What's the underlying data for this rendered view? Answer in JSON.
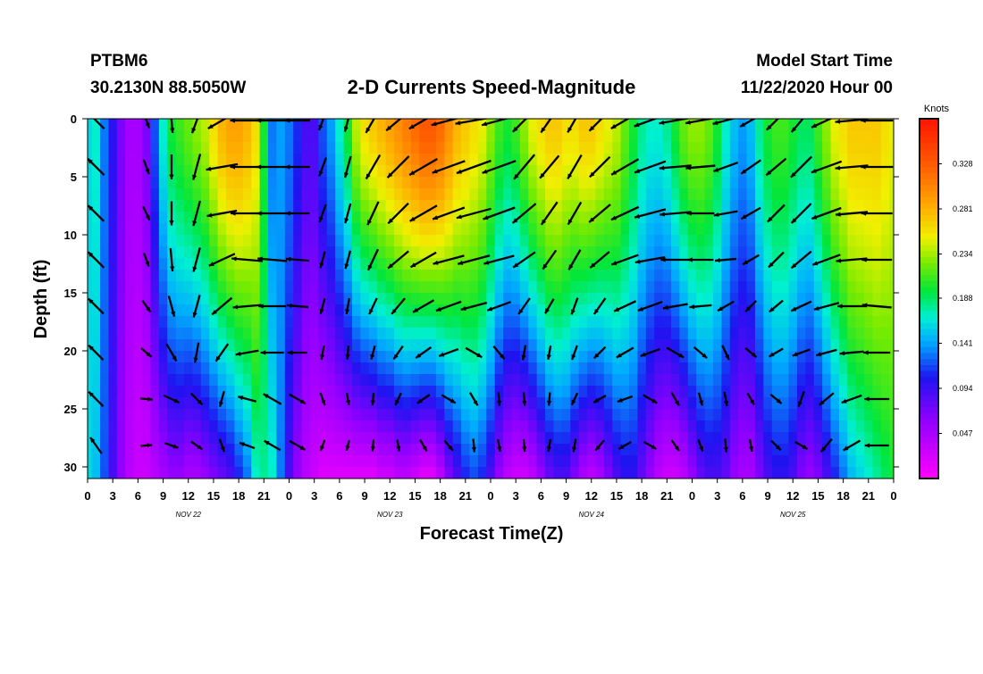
{
  "header": {
    "station": "PTBM6",
    "coords": "30.2130N 88.5050W",
    "title": "2-D Currents Speed-Magnitude",
    "model_start_label": "Model Start Time",
    "model_start_value": "11/22/2020 Hour 00"
  },
  "chart_data": {
    "type": "heatmap",
    "title": "2-D Currents Speed-Magnitude",
    "xlabel": "Forecast Time(Z)",
    "ylabel": "Depth (ft)",
    "x_unit": "hours since 11/22/2020 00Z",
    "xlim": [
      0,
      96
    ],
    "ylim": [
      0,
      31
    ],
    "y_inverted": true,
    "x_tick_labels": [
      "0",
      "3",
      "6",
      "9",
      "12",
      "15",
      "18",
      "21",
      "0",
      "3",
      "6",
      "9",
      "12",
      "15",
      "18",
      "21",
      "0",
      "3",
      "6",
      "9",
      "12",
      "15",
      "18",
      "21",
      "0",
      "3",
      "6",
      "9",
      "12",
      "15",
      "18",
      "21",
      "0"
    ],
    "y_ticks": [
      0,
      5,
      10,
      15,
      20,
      25,
      30
    ],
    "day_labels": [
      {
        "hour": 12,
        "label": "NOV 22"
      },
      {
        "hour": 36,
        "label": "NOV 23"
      },
      {
        "hour": 60,
        "label": "NOV 24"
      },
      {
        "hour": 84,
        "label": "NOV 25"
      }
    ],
    "colorbar": {
      "label": "Knots",
      "min": 0.0,
      "max": 0.375,
      "ticks": [
        0.047,
        0.094,
        0.141,
        0.188,
        0.234,
        0.281,
        0.328
      ],
      "colormap": "magenta-blue-cyan-green-yellow-orange-red"
    },
    "speed_profile_hours": [
      0,
      1,
      2,
      3,
      4,
      5,
      6,
      7,
      8,
      9,
      10,
      11,
      12,
      13,
      14,
      15,
      16,
      17,
      18,
      19,
      20,
      21,
      22,
      23,
      24,
      25,
      26,
      27,
      28,
      29,
      30,
      31,
      32,
      33,
      34,
      35,
      36,
      37,
      38,
      39,
      40,
      41,
      42,
      43,
      44,
      45,
      46,
      47,
      48,
      49,
      50,
      51,
      52,
      53,
      54,
      55,
      56,
      57,
      58,
      59,
      60,
      61,
      62,
      63,
      64,
      65,
      66,
      67,
      68,
      69,
      70,
      71,
      72,
      73,
      74,
      75,
      76,
      77,
      78,
      79,
      80,
      81,
      82,
      83,
      84,
      85,
      86,
      87,
      88,
      89,
      90,
      91,
      92,
      93,
      94,
      95,
      96
    ],
    "speed_surface_kn": [
      0.16,
      0.17,
      0.13,
      0.1,
      0.07,
      0.05,
      0.05,
      0.07,
      0.12,
      0.17,
      0.2,
      0.21,
      0.22,
      0.23,
      0.24,
      0.26,
      0.28,
      0.29,
      0.29,
      0.28,
      0.26,
      0.2,
      0.13,
      0.14,
      0.13,
      0.11,
      0.09,
      0.09,
      0.12,
      0.14,
      0.17,
      0.2,
      0.24,
      0.26,
      0.27,
      0.28,
      0.29,
      0.3,
      0.31,
      0.32,
      0.33,
      0.33,
      0.32,
      0.3,
      0.28,
      0.27,
      0.26,
      0.25,
      0.23,
      0.21,
      0.2,
      0.21,
      0.23,
      0.25,
      0.26,
      0.27,
      0.27,
      0.26,
      0.26,
      0.27,
      0.27,
      0.26,
      0.25,
      0.24,
      0.22,
      0.2,
      0.18,
      0.17,
      0.17,
      0.18,
      0.2,
      0.22,
      0.23,
      0.23,
      0.22,
      0.2,
      0.17,
      0.15,
      0.14,
      0.15,
      0.18,
      0.2,
      0.21,
      0.21,
      0.2,
      0.19,
      0.19,
      0.21,
      0.23,
      0.25,
      0.26,
      0.27,
      0.27,
      0.27,
      0.27,
      0.26,
      0.25
    ],
    "speed_bottom_kn": [
      0.16,
      0.15,
      0.12,
      0.09,
      0.06,
      0.04,
      0.03,
      0.03,
      0.04,
      0.05,
      0.06,
      0.06,
      0.05,
      0.05,
      0.06,
      0.07,
      0.08,
      0.09,
      0.11,
      0.13,
      0.17,
      0.18,
      0.17,
      0.13,
      0.09,
      0.06,
      0.04,
      0.03,
      0.02,
      0.02,
      0.02,
      0.02,
      0.02,
      0.02,
      0.02,
      0.03,
      0.03,
      0.04,
      0.04,
      0.03,
      0.02,
      0.02,
      0.04,
      0.07,
      0.09,
      0.11,
      0.12,
      0.11,
      0.09,
      0.06,
      0.04,
      0.03,
      0.03,
      0.04,
      0.06,
      0.08,
      0.09,
      0.09,
      0.07,
      0.05,
      0.04,
      0.05,
      0.07,
      0.09,
      0.1,
      0.1,
      0.08,
      0.06,
      0.04,
      0.03,
      0.03,
      0.04,
      0.06,
      0.08,
      0.09,
      0.09,
      0.08,
      0.06,
      0.05,
      0.05,
      0.07,
      0.09,
      0.1,
      0.1,
      0.09,
      0.07,
      0.06,
      0.07,
      0.09,
      0.11,
      0.13,
      0.15,
      0.16,
      0.17,
      0.18,
      0.19,
      0.2
    ],
    "vector_depths_ft": [
      0,
      4,
      8,
      12,
      16,
      20,
      24,
      28
    ],
    "vector_hours": [
      1,
      7,
      10,
      13,
      16,
      19,
      22,
      25,
      28,
      31,
      34,
      37,
      40,
      43,
      46,
      49,
      52,
      55,
      58,
      61,
      64,
      67,
      70,
      73,
      76,
      79,
      82,
      85,
      88,
      91,
      94
    ],
    "vector_direction_deg": [
      [
        315,
        160,
        175,
        200,
        240,
        270,
        270,
        270,
        200,
        195,
        210,
        230,
        240,
        255,
        260,
        255,
        225,
        215,
        210,
        225,
        240,
        250,
        260,
        260,
        255,
        240,
        225,
        220,
        245,
        265,
        270
      ],
      [
        315,
        160,
        180,
        195,
        260,
        270,
        270,
        270,
        200,
        195,
        210,
        225,
        240,
        250,
        250,
        250,
        220,
        220,
        210,
        225,
        240,
        250,
        265,
        265,
        250,
        235,
        230,
        225,
        250,
        265,
        270
      ],
      [
        315,
        155,
        180,
        195,
        260,
        270,
        270,
        270,
        200,
        195,
        205,
        225,
        240,
        250,
        255,
        250,
        230,
        215,
        210,
        230,
        245,
        255,
        265,
        270,
        260,
        240,
        225,
        225,
        250,
        265,
        270
      ],
      [
        315,
        160,
        175,
        195,
        245,
        275,
        275,
        275,
        195,
        195,
        205,
        230,
        240,
        255,
        255,
        255,
        235,
        215,
        210,
        230,
        250,
        260,
        270,
        270,
        265,
        240,
        225,
        230,
        250,
        265,
        270
      ],
      [
        315,
        145,
        165,
        195,
        230,
        265,
        270,
        275,
        195,
        190,
        205,
        220,
        240,
        250,
        255,
        250,
        215,
        210,
        200,
        215,
        245,
        250,
        260,
        265,
        240,
        225,
        230,
        245,
        255,
        270,
        275
      ],
      [
        315,
        130,
        150,
        190,
        215,
        260,
        270,
        270,
        190,
        185,
        195,
        215,
        235,
        250,
        120,
        140,
        190,
        190,
        200,
        225,
        240,
        250,
        120,
        130,
        155,
        130,
        240,
        250,
        255,
        265,
        270
      ],
      [
        315,
        95,
        115,
        135,
        195,
        285,
        300,
        120,
        160,
        170,
        185,
        205,
        235,
        120,
        150,
        175,
        175,
        185,
        205,
        240,
        250,
        120,
        150,
        165,
        170,
        150,
        130,
        200,
        230,
        250,
        270
      ],
      [
        325,
        85,
        110,
        125,
        160,
        290,
        300,
        120,
        200,
        195,
        185,
        170,
        150,
        140,
        175,
        170,
        175,
        190,
        190,
        220,
        240,
        120,
        145,
        160,
        175,
        170,
        135,
        120,
        220,
        240,
        270
      ]
    ],
    "vector_speed_kn": [
      [
        0.16,
        0.08,
        0.18,
        0.2,
        0.26,
        0.28,
        0.26,
        0.18,
        0.13,
        0.16,
        0.22,
        0.25,
        0.27,
        0.3,
        0.32,
        0.3,
        0.26,
        0.23,
        0.21,
        0.23,
        0.26,
        0.28,
        0.27,
        0.24,
        0.2,
        0.18,
        0.2,
        0.24,
        0.27,
        0.27,
        0.26
      ],
      [
        0.16,
        0.07,
        0.18,
        0.2,
        0.26,
        0.28,
        0.26,
        0.18,
        0.12,
        0.15,
        0.21,
        0.24,
        0.26,
        0.29,
        0.31,
        0.3,
        0.26,
        0.23,
        0.21,
        0.22,
        0.25,
        0.27,
        0.26,
        0.23,
        0.19,
        0.17,
        0.19,
        0.23,
        0.26,
        0.27,
        0.26
      ],
      [
        0.15,
        0.07,
        0.17,
        0.19,
        0.24,
        0.27,
        0.25,
        0.17,
        0.11,
        0.13,
        0.19,
        0.22,
        0.25,
        0.28,
        0.3,
        0.28,
        0.24,
        0.21,
        0.19,
        0.21,
        0.24,
        0.26,
        0.25,
        0.21,
        0.17,
        0.15,
        0.17,
        0.21,
        0.25,
        0.26,
        0.25
      ],
      [
        0.15,
        0.06,
        0.16,
        0.18,
        0.22,
        0.25,
        0.23,
        0.16,
        0.09,
        0.11,
        0.16,
        0.2,
        0.23,
        0.26,
        0.27,
        0.25,
        0.2,
        0.16,
        0.16,
        0.18,
        0.22,
        0.24,
        0.23,
        0.19,
        0.14,
        0.11,
        0.14,
        0.19,
        0.23,
        0.25,
        0.24
      ],
      [
        0.14,
        0.06,
        0.14,
        0.16,
        0.19,
        0.22,
        0.21,
        0.14,
        0.08,
        0.08,
        0.1,
        0.13,
        0.17,
        0.2,
        0.2,
        0.18,
        0.12,
        0.09,
        0.1,
        0.12,
        0.17,
        0.19,
        0.18,
        0.15,
        0.11,
        0.07,
        0.1,
        0.15,
        0.19,
        0.22,
        0.23
      ],
      [
        0.13,
        0.05,
        0.12,
        0.13,
        0.14,
        0.16,
        0.16,
        0.12,
        0.06,
        0.05,
        0.06,
        0.08,
        0.11,
        0.13,
        0.11,
        0.09,
        0.07,
        0.06,
        0.07,
        0.08,
        0.12,
        0.13,
        0.12,
        0.09,
        0.08,
        0.06,
        0.08,
        0.11,
        0.14,
        0.17,
        0.2
      ],
      [
        0.13,
        0.04,
        0.09,
        0.08,
        0.08,
        0.11,
        0.13,
        0.11,
        0.05,
        0.04,
        0.04,
        0.05,
        0.07,
        0.08,
        0.07,
        0.05,
        0.05,
        0.05,
        0.05,
        0.06,
        0.08,
        0.08,
        0.07,
        0.05,
        0.06,
        0.05,
        0.06,
        0.08,
        0.11,
        0.14,
        0.18
      ],
      [
        0.12,
        0.03,
        0.06,
        0.05,
        0.05,
        0.08,
        0.11,
        0.1,
        0.03,
        0.02,
        0.03,
        0.03,
        0.05,
        0.05,
        0.05,
        0.04,
        0.04,
        0.04,
        0.05,
        0.05,
        0.06,
        0.06,
        0.05,
        0.04,
        0.05,
        0.04,
        0.05,
        0.06,
        0.09,
        0.12,
        0.17
      ]
    ]
  }
}
